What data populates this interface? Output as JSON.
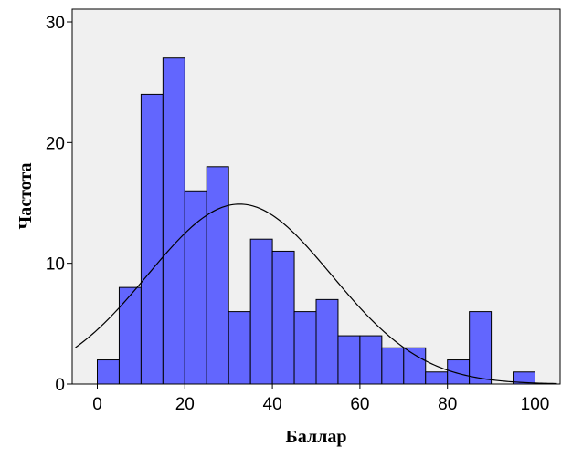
{
  "chart_data": {
    "type": "bar",
    "subtype": "histogram",
    "xlabel": "Баллар",
    "ylabel": "Частота",
    "xlim": [
      -5,
      105
    ],
    "ylim": [
      0,
      30
    ],
    "x_ticks": [
      0,
      20,
      40,
      60,
      80,
      100
    ],
    "y_ticks": [
      0,
      10,
      20,
      30
    ],
    "bin_width": 5,
    "bins": [
      {
        "start": 0,
        "end": 5,
        "count": 2
      },
      {
        "start": 5,
        "end": 10,
        "count": 8
      },
      {
        "start": 10,
        "end": 15,
        "count": 24
      },
      {
        "start": 15,
        "end": 20,
        "count": 27
      },
      {
        "start": 20,
        "end": 25,
        "count": 16
      },
      {
        "start": 25,
        "end": 30,
        "count": 18
      },
      {
        "start": 30,
        "end": 35,
        "count": 6
      },
      {
        "start": 35,
        "end": 40,
        "count": 12
      },
      {
        "start": 40,
        "end": 45,
        "count": 11
      },
      {
        "start": 45,
        "end": 50,
        "count": 6
      },
      {
        "start": 50,
        "end": 55,
        "count": 7
      },
      {
        "start": 55,
        "end": 60,
        "count": 4
      },
      {
        "start": 60,
        "end": 65,
        "count": 4
      },
      {
        "start": 65,
        "end": 70,
        "count": 3
      },
      {
        "start": 70,
        "end": 75,
        "count": 3
      },
      {
        "start": 75,
        "end": 80,
        "count": 1
      },
      {
        "start": 80,
        "end": 85,
        "count": 2
      },
      {
        "start": 85,
        "end": 90,
        "count": 6
      },
      {
        "start": 90,
        "end": 95,
        "count": 0
      },
      {
        "start": 95,
        "end": 100,
        "count": 1
      }
    ],
    "normal_curve": {
      "mean": 32.5,
      "peak": 14.9,
      "sd": 21
    },
    "grid": false,
    "colors": {
      "bar_fill": "#6266fe",
      "bar_stroke": "#000000",
      "plot_background": "#f0f0f0",
      "curve": "#000000"
    }
  }
}
